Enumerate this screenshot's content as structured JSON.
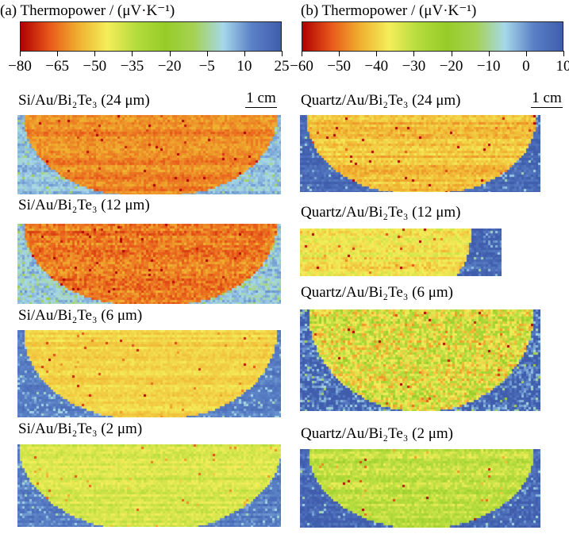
{
  "panel_a": {
    "title": "(a)   Thermopower / (μV·K⁻¹)",
    "colorbar": {
      "range": [
        -80,
        25
      ],
      "tick_labels": [
        "−80",
        "−65",
        "−50",
        "−35",
        "−20",
        "−5",
        "10",
        "25"
      ],
      "tick_values": [
        -80,
        -65,
        -50,
        -35,
        -20,
        -5,
        10,
        25
      ]
    },
    "maps": [
      {
        "label": "Si/Au/Bi₂Te₃ (24 μm)",
        "sample_value": -62,
        "background_value": 5
      },
      {
        "label": "Si/Au/Bi₂Te₃ (12 μm)",
        "sample_value": -64,
        "background_value": 3
      },
      {
        "label": "Si/Au/Bi₂Te₃ (6 μm)",
        "sample_value": -50,
        "background_value": 15
      },
      {
        "label": "Si/Au/Bi₂Te₃ (2 μm)",
        "sample_value": -40,
        "background_value": 15
      }
    ],
    "scale_label": "1 cm"
  },
  "panel_b": {
    "title": "(b)  Thermopower / (μV·K⁻¹)",
    "colorbar": {
      "range": [
        -60,
        10
      ],
      "tick_labels": [
        "−60",
        "−50",
        "−40",
        "−30",
        "−20",
        "−10",
        "0",
        "10"
      ],
      "tick_values": [
        -60,
        -50,
        -40,
        -30,
        -20,
        -10,
        0,
        10
      ]
    },
    "maps": [
      {
        "label": "Quartz/Au/Bi₂Te₃ (24 μm)",
        "sample_value": -42,
        "background_value": 8
      },
      {
        "label": "Quartz/Au/Bi₂Te₃ (12 μm)",
        "sample_value": -38,
        "background_value": 8
      },
      {
        "label": "Quartz/Au/Bi₂Te₃ (6 μm)",
        "sample_value": -34,
        "background_value": 8
      },
      {
        "label": "Quartz/Au/Bi₂Te₃ (2 μm)",
        "sample_value": -30,
        "background_value": 8
      }
    ],
    "scale_label": "1 cm"
  },
  "colors": {
    "scale": [
      "#b00000",
      "#e8581a",
      "#f0b030",
      "#f4ee5a",
      "#b4dc3c",
      "#96cc28",
      "#a6d254",
      "#a6d8ea",
      "#5a80c6",
      "#3f5dac"
    ]
  },
  "chart_data": [
    {
      "type": "heatmap",
      "title": "(a)   Thermopower / (μV·K⁻¹)",
      "colorbar_range": [
        -80,
        25
      ],
      "panels": [
        {
          "label": "Si/Au/Bi₂Te₃ (24 μm)",
          "approx_sample_thermopower": -62
        },
        {
          "label": "Si/Au/Bi₂Te₃ (12 μm)",
          "approx_sample_thermopower": -64
        },
        {
          "label": "Si/Au/Bi₂Te₃ (6 μm)",
          "approx_sample_thermopower": -50
        },
        {
          "label": "Si/Au/Bi₂Te₃ (2 μm)",
          "approx_sample_thermopower": -40
        }
      ]
    },
    {
      "type": "heatmap",
      "title": "(b)  Thermopower / (μV·K⁻¹)",
      "colorbar_range": [
        -60,
        10
      ],
      "panels": [
        {
          "label": "Quartz/Au/Bi₂Te₃ (24 μm)",
          "approx_sample_thermopower": -42
        },
        {
          "label": "Quartz/Au/Bi₂Te₃ (12 μm)",
          "approx_sample_thermopower": -38
        },
        {
          "label": "Quartz/Au/Bi₂Te₃ (6 μm)",
          "approx_sample_thermopower": -34
        },
        {
          "label": "Quartz/Au/Bi₂Te₃ (2 μm)",
          "approx_sample_thermopower": -30
        }
      ]
    }
  ]
}
